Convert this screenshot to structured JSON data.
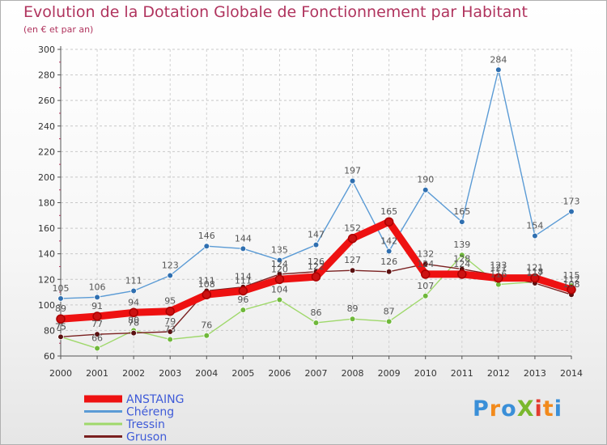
{
  "title": "Evolution de la Dotation Globale de Fonctionnement par Habitant",
  "subtitle": "(en € et par an)",
  "logo": {
    "text": "ProXiti",
    "letter_colors": [
      "#3a8fd8",
      "#f28a1c",
      "#3a8fd8",
      "#7ab82e",
      "#e33b2f",
      "#f28a1c",
      "#3a8fd8"
    ]
  },
  "chart_data": {
    "type": "line",
    "x": [
      2000,
      2001,
      2002,
      2003,
      2004,
      2005,
      2006,
      2007,
      2008,
      2009,
      2010,
      2011,
      2012,
      2013,
      2014
    ],
    "ylim": [
      60,
      300
    ],
    "yticks": [
      60,
      80,
      100,
      120,
      140,
      160,
      180,
      200,
      220,
      240,
      260,
      280,
      300
    ],
    "grid": true,
    "legend_position": "bottom-left",
    "series": [
      {
        "name": "Chéreng",
        "color": "#5b9bd5",
        "marker": "#2f6fb0",
        "values": [
          105,
          106,
          111,
          123,
          146,
          144,
          135,
          147,
          197,
          142,
          190,
          165,
          284,
          154,
          173
        ],
        "labels": [
          "105",
          "106",
          "111",
          "123",
          "146",
          "144",
          "135",
          "147",
          "197",
          "142",
          "190",
          "165",
          "284",
          "154",
          "173"
        ]
      },
      {
        "name": "Tressin",
        "color": "#9fd86b",
        "marker": "#6fb83a",
        "values": [
          75,
          66,
          80,
          73,
          76,
          96,
          104,
          86,
          89,
          87,
          107,
          139,
          116,
          118,
          115
        ],
        "labels": [
          "75",
          "66",
          "80",
          "73",
          "76",
          "96",
          "104",
          "86",
          "89",
          "87",
          "107",
          "139",
          "116",
          "118",
          "115"
        ]
      },
      {
        "name": "Gruson",
        "color": "#7a2020",
        "marker": "#5a1010",
        "values": [
          75,
          77,
          78,
          79,
          111,
          114,
          124,
          126,
          127,
          126,
          132,
          128,
          123,
          117,
          108
        ],
        "labels": [
          "75",
          "77",
          "78",
          "79",
          "111",
          "114",
          "124",
          "126",
          "127",
          "126",
          "132",
          "128",
          "123",
          "117",
          "108"
        ]
      },
      {
        "name": "ANSTAING",
        "color": "#ee1111",
        "marker": "#cc1111",
        "values": [
          89,
          91,
          94,
          95,
          108,
          111,
          120,
          122,
          152,
          165,
          124,
          124,
          121,
          121,
          112
        ],
        "labels": [
          "89",
          "91",
          "94",
          "95",
          "108",
          "111",
          "120",
          "122",
          "152",
          "165",
          "124",
          "124",
          "121",
          "121",
          "112"
        ]
      }
    ]
  }
}
